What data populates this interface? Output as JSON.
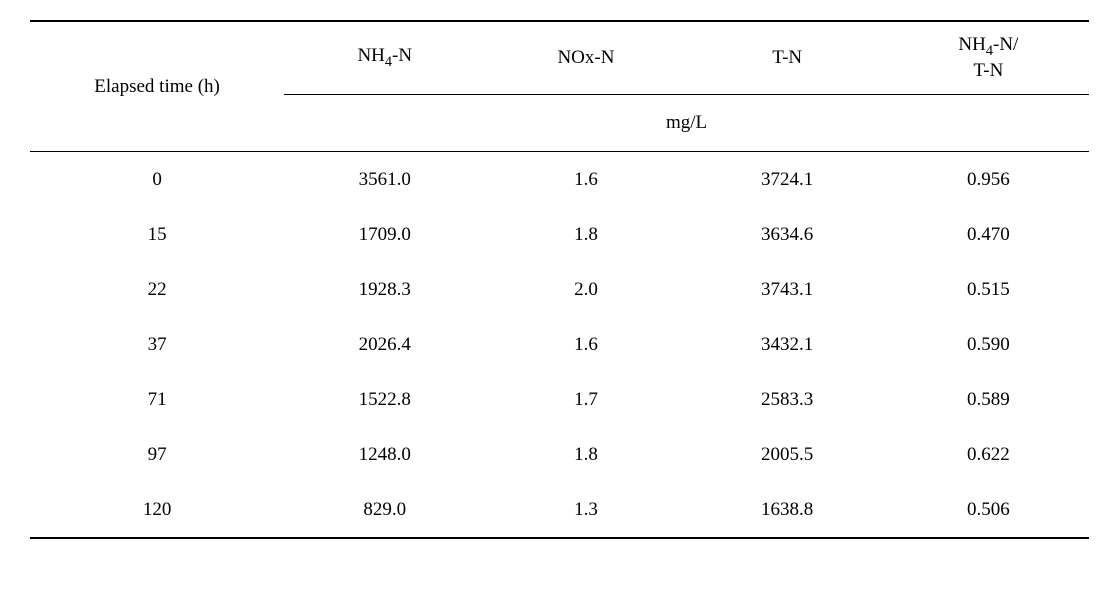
{
  "table": {
    "type": "table",
    "background_color": "#ffffff",
    "text_color": "#000000",
    "font_family": "serif",
    "font_size_pt": 14,
    "border_color": "#000000",
    "border_width_outer": 2,
    "border_width_inner": 1,
    "columns": [
      {
        "key": "elapsed",
        "header": "Elapsed time (h)",
        "width_pct": 24,
        "align": "center"
      },
      {
        "key": "nh4n",
        "header_html": "NH<sub>4</sub>-N",
        "width_pct": 19,
        "align": "center"
      },
      {
        "key": "noxn",
        "header": "NOx-N",
        "width_pct": 19,
        "align": "center"
      },
      {
        "key": "tn",
        "header": "T-N",
        "width_pct": 19,
        "align": "center"
      },
      {
        "key": "ratio",
        "header_html": "NH<sub>4</sub>-N/<br>T-N",
        "width_pct": 19,
        "align": "center"
      }
    ],
    "unit_label": "mg/L",
    "rows": [
      {
        "elapsed": "0",
        "nh4n": "3561.0",
        "noxn": "1.6",
        "tn": "3724.1",
        "ratio": "0.956"
      },
      {
        "elapsed": "15",
        "nh4n": "1709.0",
        "noxn": "1.8",
        "tn": "3634.6",
        "ratio": "0.470"
      },
      {
        "elapsed": "22",
        "nh4n": "1928.3",
        "noxn": "2.0",
        "tn": "3743.1",
        "ratio": "0.515"
      },
      {
        "elapsed": "37",
        "nh4n": "2026.4",
        "noxn": "1.6",
        "tn": "3432.1",
        "ratio": "0.590"
      },
      {
        "elapsed": "71",
        "nh4n": "1522.8",
        "noxn": "1.7",
        "tn": "2583.3",
        "ratio": "0.589"
      },
      {
        "elapsed": "97",
        "nh4n": "1248.0",
        "noxn": "1.8",
        "tn": "2005.5",
        "ratio": "0.622"
      },
      {
        "elapsed": "120",
        "nh4n": "829.0",
        "noxn": "1.3",
        "tn": "1638.8",
        "ratio": "0.506"
      }
    ]
  }
}
